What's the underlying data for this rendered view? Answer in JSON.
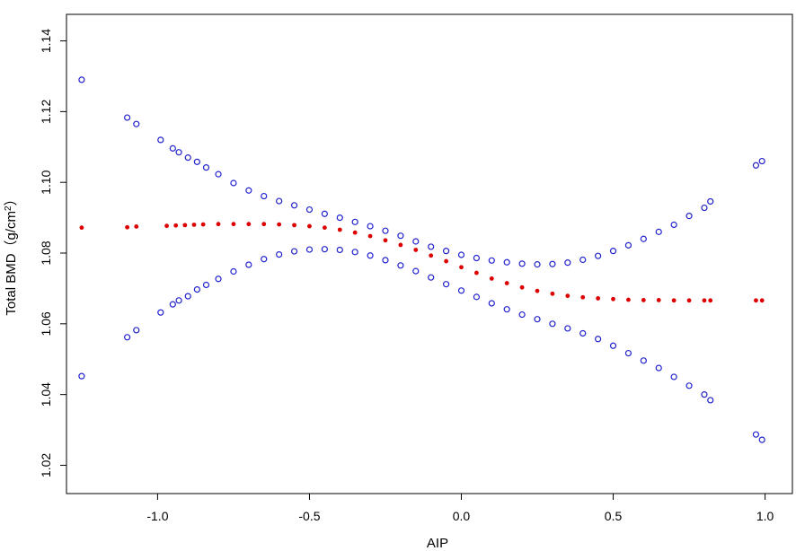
{
  "chart_data": {
    "type": "scatter",
    "title": "",
    "xlabel": "AIP",
    "ylabel_prefix": "Total BMD（g/cm",
    "ylabel_sup": "2",
    "ylabel_suffix": "）",
    "xlim": [
      -1.3,
      1.09
    ],
    "ylim": [
      1.012,
      1.1475
    ],
    "xticks": [
      {
        "value": -1.0,
        "label": "-1.0"
      },
      {
        "value": -0.5,
        "label": "-0.5"
      },
      {
        "value": 0.0,
        "label": "0.0"
      },
      {
        "value": 0.5,
        "label": "0.5"
      },
      {
        "value": 1.0,
        "label": "1.0"
      }
    ],
    "yticks": [
      {
        "value": 1.02,
        "label": "1.02"
      },
      {
        "value": 1.04,
        "label": "1.04"
      },
      {
        "value": 1.06,
        "label": "1.06"
      },
      {
        "value": 1.08,
        "label": "1.08"
      },
      {
        "value": 1.1,
        "label": "1.10"
      },
      {
        "value": 1.12,
        "label": "1.12"
      },
      {
        "value": 1.14,
        "label": "1.14"
      }
    ],
    "grid": false,
    "colors": {
      "ci": "#2222cc",
      "estimate": "#dd0000"
    },
    "series": [
      {
        "key": "upper",
        "marker": "open-circle",
        "color": "#2222cc",
        "points": [
          [
            -1.25,
            1.129
          ],
          [
            -1.1,
            1.1183
          ],
          [
            -1.07,
            1.1165
          ],
          [
            -0.99,
            1.112
          ],
          [
            -0.95,
            1.1096
          ],
          [
            -0.93,
            1.1085
          ],
          [
            -0.9,
            1.107
          ],
          [
            -0.87,
            1.1058
          ],
          [
            -0.84,
            1.1042
          ],
          [
            -0.8,
            1.1023
          ],
          [
            -0.75,
            1.0998
          ],
          [
            -0.7,
            1.0977
          ],
          [
            -0.65,
            1.0961
          ],
          [
            -0.6,
            1.0947
          ],
          [
            -0.55,
            1.0935
          ],
          [
            -0.5,
            1.0923
          ],
          [
            -0.45,
            1.0911
          ],
          [
            -0.4,
            1.09
          ],
          [
            -0.35,
            1.0888
          ],
          [
            -0.3,
            1.0876
          ],
          [
            -0.25,
            1.0863
          ],
          [
            -0.2,
            1.0849
          ],
          [
            -0.15,
            1.0833
          ],
          [
            -0.1,
            1.0818
          ],
          [
            -0.05,
            1.0806
          ],
          [
            0.0,
            1.0795
          ],
          [
            0.05,
            1.0786
          ],
          [
            0.1,
            1.0779
          ],
          [
            0.15,
            1.0774
          ],
          [
            0.2,
            1.077
          ],
          [
            0.25,
            1.0768
          ],
          [
            0.3,
            1.0769
          ],
          [
            0.35,
            1.0773
          ],
          [
            0.4,
            1.0781
          ],
          [
            0.45,
            1.0792
          ],
          [
            0.5,
            1.0806
          ],
          [
            0.55,
            1.0822
          ],
          [
            0.6,
            1.084
          ],
          [
            0.65,
            1.086
          ],
          [
            0.7,
            1.088
          ],
          [
            0.75,
            1.0905
          ],
          [
            0.8,
            1.0928
          ],
          [
            0.82,
            1.0946
          ],
          [
            0.97,
            1.1048
          ],
          [
            0.99,
            1.106
          ]
        ]
      },
      {
        "key": "estimate",
        "marker": "filled-circle",
        "color": "#dd0000",
        "points": [
          [
            -1.25,
            1.0872
          ],
          [
            -1.1,
            1.0873
          ],
          [
            -1.07,
            1.0875
          ],
          [
            -0.97,
            1.0877
          ],
          [
            -0.94,
            1.0878
          ],
          [
            -0.91,
            1.0879
          ],
          [
            -0.88,
            1.088
          ],
          [
            -0.85,
            1.0881
          ],
          [
            -0.8,
            1.0882
          ],
          [
            -0.75,
            1.0882
          ],
          [
            -0.7,
            1.0882
          ],
          [
            -0.65,
            1.0882
          ],
          [
            -0.6,
            1.0881
          ],
          [
            -0.55,
            1.0879
          ],
          [
            -0.5,
            1.0876
          ],
          [
            -0.45,
            1.0872
          ],
          [
            -0.4,
            1.0866
          ],
          [
            -0.35,
            1.0858
          ],
          [
            -0.3,
            1.0848
          ],
          [
            -0.25,
            1.0836
          ],
          [
            -0.2,
            1.0823
          ],
          [
            -0.15,
            1.0809
          ],
          [
            -0.1,
            1.0793
          ],
          [
            -0.05,
            1.0777
          ],
          [
            0.0,
            1.076
          ],
          [
            0.05,
            1.0744
          ],
          [
            0.1,
            1.0728
          ],
          [
            0.15,
            1.0715
          ],
          [
            0.2,
            1.0703
          ],
          [
            0.25,
            1.0693
          ],
          [
            0.3,
            1.0685
          ],
          [
            0.35,
            1.0679
          ],
          [
            0.4,
            1.0675
          ],
          [
            0.45,
            1.0672
          ],
          [
            0.5,
            1.067
          ],
          [
            0.55,
            1.0668
          ],
          [
            0.6,
            1.0667
          ],
          [
            0.65,
            1.0667
          ],
          [
            0.7,
            1.0666
          ],
          [
            0.75,
            1.0666
          ],
          [
            0.8,
            1.0666
          ],
          [
            0.82,
            1.0666
          ],
          [
            0.97,
            1.0666
          ],
          [
            0.99,
            1.0666
          ]
        ]
      },
      {
        "key": "lower",
        "marker": "open-circle",
        "color": "#2222cc",
        "points": [
          [
            -1.25,
            1.0452
          ],
          [
            -1.1,
            1.0562
          ],
          [
            -1.07,
            1.0582
          ],
          [
            -0.99,
            1.0632
          ],
          [
            -0.95,
            1.0655
          ],
          [
            -0.93,
            1.0666
          ],
          [
            -0.9,
            1.0678
          ],
          [
            -0.87,
            1.0697
          ],
          [
            -0.84,
            1.071
          ],
          [
            -0.8,
            1.0727
          ],
          [
            -0.75,
            1.0748
          ],
          [
            -0.7,
            1.0767
          ],
          [
            -0.65,
            1.0783
          ],
          [
            -0.6,
            1.0796
          ],
          [
            -0.55,
            1.0805
          ],
          [
            -0.5,
            1.081
          ],
          [
            -0.45,
            1.0811
          ],
          [
            -0.4,
            1.0809
          ],
          [
            -0.35,
            1.0803
          ],
          [
            -0.3,
            1.0793
          ],
          [
            -0.25,
            1.078
          ],
          [
            -0.2,
            1.0765
          ],
          [
            -0.15,
            1.0749
          ],
          [
            -0.1,
            1.0731
          ],
          [
            -0.05,
            1.0712
          ],
          [
            0.0,
            1.0694
          ],
          [
            0.05,
            1.0676
          ],
          [
            0.1,
            1.0658
          ],
          [
            0.15,
            1.0641
          ],
          [
            0.2,
            1.0626
          ],
          [
            0.25,
            1.0613
          ],
          [
            0.3,
            1.06
          ],
          [
            0.35,
            1.0587
          ],
          [
            0.4,
            1.0573
          ],
          [
            0.45,
            1.0557
          ],
          [
            0.5,
            1.0538
          ],
          [
            0.55,
            1.0517
          ],
          [
            0.6,
            1.0496
          ],
          [
            0.65,
            1.0475
          ],
          [
            0.7,
            1.045
          ],
          [
            0.75,
            1.0425
          ],
          [
            0.8,
            1.04
          ],
          [
            0.82,
            1.0384
          ],
          [
            0.97,
            1.0287
          ],
          [
            0.99,
            1.0272
          ]
        ]
      }
    ]
  }
}
